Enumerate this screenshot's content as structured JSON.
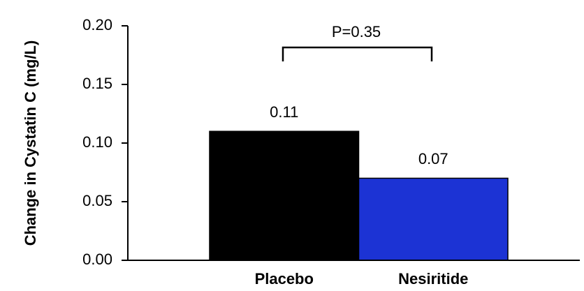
{
  "chart_data": {
    "type": "bar",
    "y_label": "Change in Cystatin C (mg/L)",
    "annotation": "P=0.35",
    "categories": [
      "Placebo",
      "Nesiritide"
    ],
    "values": [
      0.11,
      0.07
    ],
    "colors": [
      "#000000",
      "#1c33d4"
    ],
    "ylim": [
      0,
      0.2
    ],
    "yticks": [
      {
        "value": 0,
        "label": "0.00"
      },
      {
        "value": 0.05,
        "label": "0.05"
      },
      {
        "value": 0.1,
        "label": "0.10"
      },
      {
        "value": 0.15,
        "label": "0.15"
      },
      {
        "value": 0.2,
        "label": "0.20"
      }
    ]
  }
}
